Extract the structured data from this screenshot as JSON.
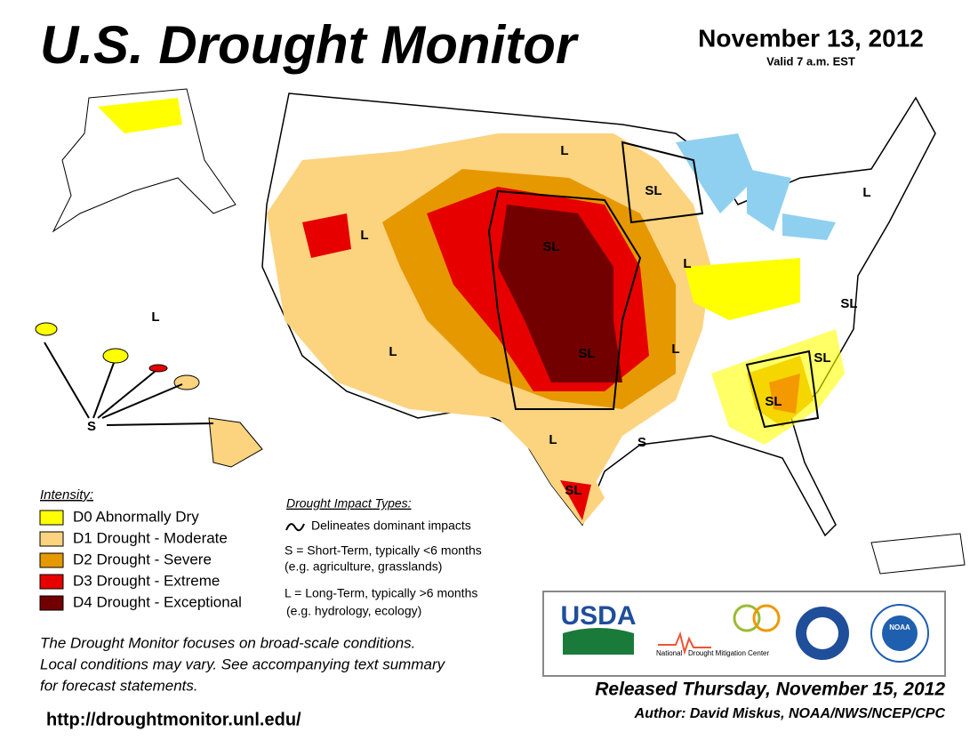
{
  "header": {
    "title": "U.S. Drought Monitor",
    "date": "November 13, 2012",
    "valid": "Valid 7 a.m. EST"
  },
  "map_labels": [
    "L",
    "SL",
    "L",
    "SL",
    "L",
    "SL",
    "L",
    "SL",
    "L",
    "SL",
    "SL",
    "L",
    "S",
    "SL",
    "L",
    "L",
    "S"
  ],
  "legend": {
    "title": "Intensity:",
    "items": [
      {
        "label": "D0 Abnormally Dry",
        "color": "#ffff00"
      },
      {
        "label": "D1 Drought - Moderate",
        "color": "#fcd37f"
      },
      {
        "label": "D2 Drought - Severe",
        "color": "#e69800"
      },
      {
        "label": "D3 Drought - Extreme",
        "color": "#e60000"
      },
      {
        "label": "D4 Drought - Exceptional",
        "color": "#730000"
      }
    ]
  },
  "impacts": {
    "title": "Drought Impact Types:",
    "delineates": "Delineates dominant impacts",
    "short": "S = Short-Term, typically <6 months",
    "short_eg": "(e.g. agriculture, grasslands)",
    "long": "L = Long-Term, typically >6 months",
    "long_eg": "(e.g. hydrology, ecology)"
  },
  "note": [
    "The Drought Monitor focuses on broad-scale conditions.",
    "Local conditions may vary. See accompanying text summary",
    "for forecast statements."
  ],
  "url": "http://droughtmonitor.unl.edu/",
  "logos": {
    "usda": "USDA",
    "ndmc_1": "National",
    "ndmc_2": "Drought Mitigation Center",
    "noaa": "NOAA"
  },
  "footer": {
    "released": "Released Thursday, November 15, 2012",
    "author": "Author: David Miskus, NOAA/NWS/NCEP/CPC"
  }
}
